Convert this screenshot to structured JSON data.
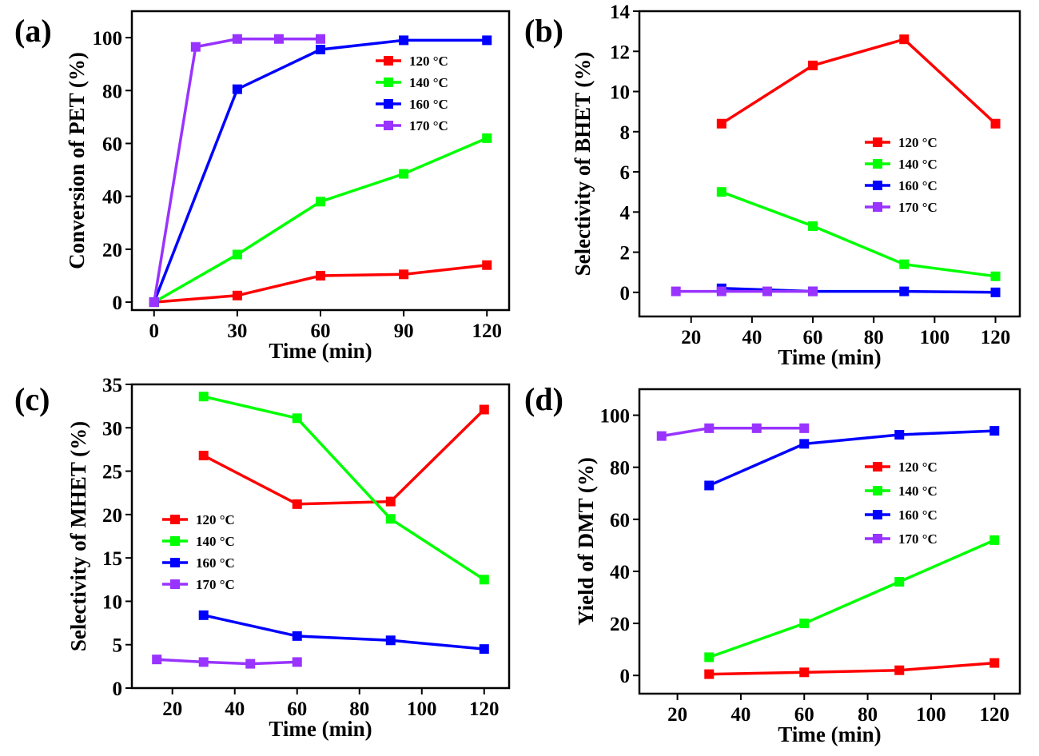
{
  "chart_data": [
    {
      "type": "line",
      "panel": "(a)",
      "xlabel": "Time (min)",
      "ylabel": "Conversion of PET (%)",
      "xlim": [
        -8,
        128
      ],
      "ylim": [
        -3,
        110
      ],
      "xticks": [
        0,
        30,
        60,
        90,
        120
      ],
      "yticks": [
        0,
        20,
        40,
        60,
        80,
        100
      ],
      "legend_position": "upper-right",
      "series": [
        {
          "name": "120 °C",
          "color": "#ff0000",
          "x": [
            0,
            30,
            60,
            90,
            120
          ],
          "y": [
            0,
            2.5,
            10,
            10.5,
            14
          ]
        },
        {
          "name": "140 °C",
          "color": "#00ff00",
          "x": [
            0,
            30,
            60,
            90,
            120
          ],
          "y": [
            0,
            18,
            38,
            48.5,
            62
          ]
        },
        {
          "name": "160 °C",
          "color": "#0000ff",
          "x": [
            0,
            30,
            60,
            90,
            120
          ],
          "y": [
            0,
            80.5,
            95.5,
            99,
            99
          ]
        },
        {
          "name": "170 °C",
          "color": "#9933ff",
          "x": [
            0,
            15,
            30,
            45,
            60
          ],
          "y": [
            0,
            96.5,
            99.5,
            99.5,
            99.5
          ]
        }
      ]
    },
    {
      "type": "line",
      "panel": "(b)",
      "xlabel": "Time (min)",
      "ylabel": "Selectivity of BHET (%)",
      "xlim": [
        3,
        128
      ],
      "ylim": [
        -1.2,
        14
      ],
      "xticks": [
        20,
        40,
        60,
        80,
        100,
        120
      ],
      "yticks": [
        0,
        2,
        4,
        6,
        8,
        10,
        12,
        14
      ],
      "legend_position": "right",
      "series": [
        {
          "name": "120 °C",
          "color": "#ff0000",
          "x": [
            30,
            60,
            90,
            120
          ],
          "y": [
            8.4,
            11.3,
            12.6,
            8.4
          ]
        },
        {
          "name": "140 °C",
          "color": "#00ff00",
          "x": [
            30,
            60,
            90,
            120
          ],
          "y": [
            5.0,
            3.3,
            1.4,
            0.8
          ]
        },
        {
          "name": "160 °C",
          "color": "#0000ff",
          "x": [
            30,
            60,
            90,
            120
          ],
          "y": [
            0.2,
            0.05,
            0.05,
            0.0
          ]
        },
        {
          "name": "170 °C",
          "color": "#9933ff",
          "x": [
            15,
            30,
            45,
            60
          ],
          "y": [
            0.05,
            0.05,
            0.05,
            0.05
          ]
        }
      ]
    },
    {
      "type": "line",
      "panel": "(c)",
      "xlabel": "Time (min)",
      "ylabel": "Selectivity of MHET (%)",
      "xlim": [
        7,
        128
      ],
      "ylim": [
        0,
        35
      ],
      "xticks": [
        20,
        40,
        60,
        80,
        100,
        120
      ],
      "yticks": [
        0,
        5,
        10,
        15,
        20,
        25,
        30,
        35
      ],
      "legend_position": "left",
      "series": [
        {
          "name": "120 °C",
          "color": "#ff0000",
          "x": [
            30,
            60,
            90,
            120
          ],
          "y": [
            26.8,
            21.2,
            21.5,
            32.1
          ]
        },
        {
          "name": "140 °C",
          "color": "#00ff00",
          "x": [
            30,
            60,
            90,
            120
          ],
          "y": [
            33.6,
            31.1,
            19.5,
            12.5
          ]
        },
        {
          "name": "160 °C",
          "color": "#0000ff",
          "x": [
            30,
            60,
            90,
            120
          ],
          "y": [
            8.4,
            6.0,
            5.5,
            4.5
          ]
        },
        {
          "name": "170 °C",
          "color": "#9933ff",
          "x": [
            15,
            30,
            45,
            60
          ],
          "y": [
            3.3,
            3.0,
            2.8,
            3.0
          ]
        }
      ]
    },
    {
      "type": "line",
      "panel": "(d)",
      "xlabel": "Time (min)",
      "ylabel": "Yield of DMT (%)",
      "xlim": [
        8,
        128
      ],
      "ylim": [
        -7,
        110
      ],
      "xticks": [
        20,
        40,
        60,
        80,
        100,
        120
      ],
      "yticks": [
        0,
        20,
        40,
        60,
        80,
        100
      ],
      "legend_position": "right",
      "series": [
        {
          "name": "120 °C",
          "color": "#ff0000",
          "x": [
            30,
            60,
            90,
            120
          ],
          "y": [
            0.5,
            1.2,
            2.0,
            4.8
          ]
        },
        {
          "name": "140 °C",
          "color": "#00ff00",
          "x": [
            30,
            60,
            90,
            120
          ],
          "y": [
            7.0,
            20.0,
            36.0,
            52.0
          ]
        },
        {
          "name": "160 °C",
          "color": "#0000ff",
          "x": [
            30,
            60,
            90,
            120
          ],
          "y": [
            73.0,
            89.0,
            92.5,
            94.0
          ]
        },
        {
          "name": "170 °C",
          "color": "#9933ff",
          "x": [
            15,
            30,
            45,
            60
          ],
          "y": [
            92.0,
            95.0,
            95.0,
            95.0
          ]
        }
      ]
    }
  ]
}
